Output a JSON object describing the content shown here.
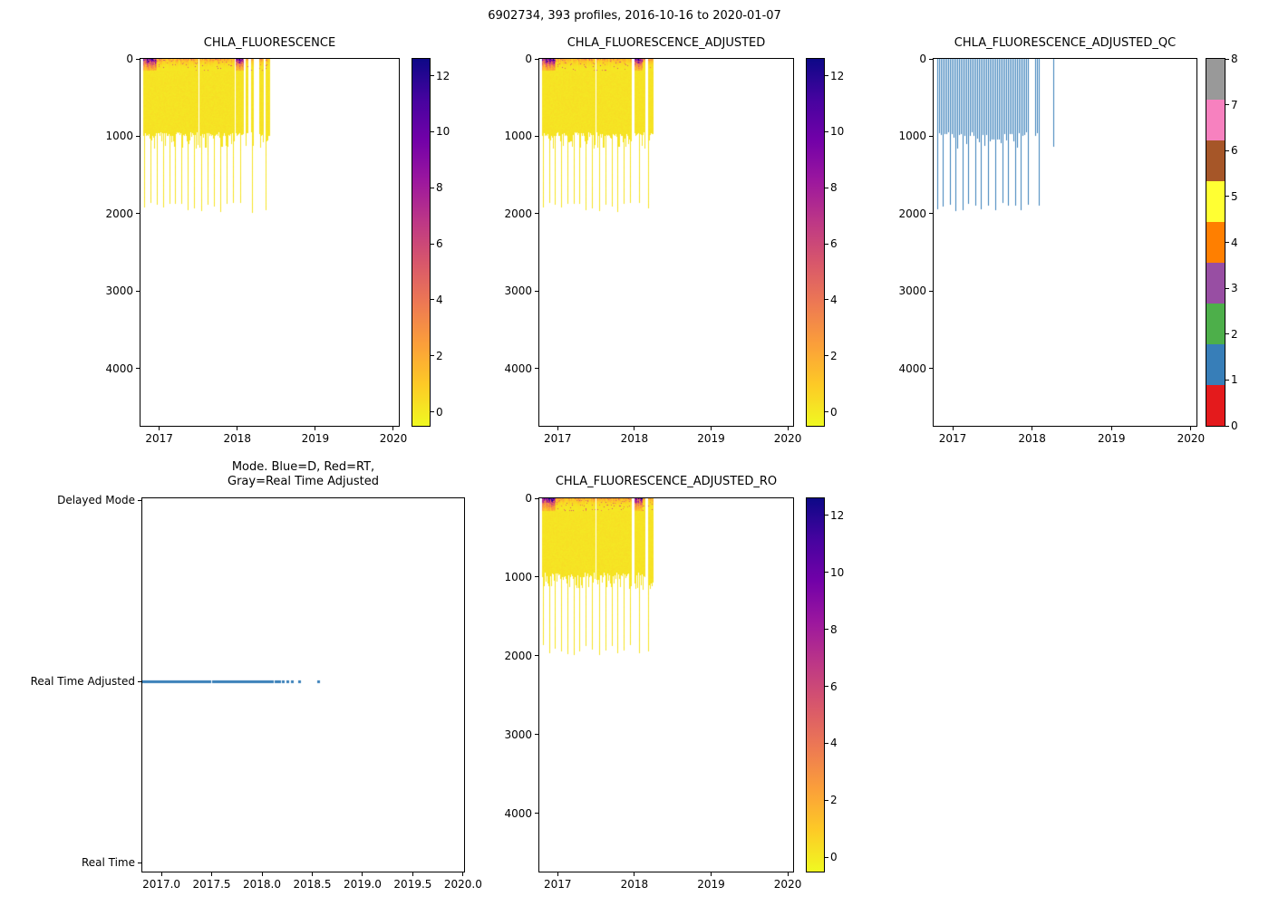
{
  "figure": {
    "title": "6902734, 393 profiles, 2016-10-16 to 2020-01-07"
  },
  "palette": {
    "plasma": [
      "#0d0887",
      "#46039f",
      "#7201a8",
      "#9c179e",
      "#bd3786",
      "#d8576b",
      "#ed7953",
      "#fb9f3a",
      "#fdca26",
      "#f0f921"
    ],
    "qc_flags": [
      "#e41a1c",
      "#377eb8",
      "#4daf4a",
      "#984ea3",
      "#ff7f00",
      "#ffff33",
      "#a65628",
      "#f781bf",
      "#999999"
    ],
    "mode_marker": "#377eb8"
  },
  "plots": {
    "p1": {
      "title": "CHLA_FLUORESCENCE",
      "yticks": [
        "0",
        "1000",
        "2000",
        "3000",
        "4000"
      ],
      "xticks": [
        "2017",
        "2018",
        "2019",
        "2020"
      ],
      "cbar_ticks": [
        "0",
        "2",
        "4",
        "6",
        "8",
        "10",
        "12"
      ]
    },
    "p2": {
      "title": "CHLA_FLUORESCENCE_ADJUSTED",
      "yticks": [
        "0",
        "1000",
        "2000",
        "3000",
        "4000"
      ],
      "xticks": [
        "2017",
        "2018",
        "2019",
        "2020"
      ],
      "cbar_ticks": [
        "0",
        "2",
        "4",
        "6",
        "8",
        "10",
        "12"
      ]
    },
    "p3": {
      "title": "CHLA_FLUORESCENCE_ADJUSTED_QC",
      "yticks": [
        "0",
        "1000",
        "2000",
        "3000",
        "4000"
      ],
      "xticks": [
        "2017",
        "2018",
        "2019",
        "2020"
      ],
      "cbar_ticks": [
        "0",
        "1",
        "2",
        "3",
        "4",
        "5",
        "6",
        "7",
        "8"
      ]
    },
    "p4": {
      "title_line1": "Mode. Blue=D, Red=RT,",
      "title_line2": "Gray=Real Time Adjusted",
      "yticks": [
        "Delayed Mode",
        "Real Time Adjusted",
        "Real Time"
      ],
      "xticks": [
        "2017.0",
        "2017.5",
        "2018.0",
        "2018.5",
        "2019.0",
        "2019.5",
        "2020.0"
      ]
    },
    "p5": {
      "title": "CHLA_FLUORESCENCE_ADJUSTED_RO",
      "yticks": [
        "0",
        "1000",
        "2000",
        "3000",
        "4000"
      ],
      "xticks": [
        "2017",
        "2018",
        "2019",
        "2020"
      ],
      "cbar_ticks": [
        "0",
        "2",
        "4",
        "6",
        "8",
        "10",
        "12"
      ]
    }
  },
  "chart_data": [
    {
      "id": "p1",
      "type": "heatmap",
      "title": "CHLA_FLUORESCENCE",
      "x_range_years": [
        2016.76,
        2020.07
      ],
      "depth_range_m": [
        0,
        4740
      ],
      "colormap": "plasma_r",
      "vmin": -0.5,
      "vmax": 12.6,
      "colorbar_ticks": [
        0,
        2,
        4,
        6,
        8,
        10,
        12
      ],
      "coverage_segments_years": [
        [
          2016.79,
          2017.49
        ],
        [
          2017.51,
          2017.96
        ],
        [
          2017.98,
          2018.07
        ],
        [
          2018.11,
          2018.14
        ],
        [
          2018.18,
          2018.21
        ],
        [
          2018.28,
          2018.33
        ],
        [
          2018.36,
          2018.41
        ]
      ],
      "profile_spacing_years": 0.008,
      "main_profile_depth_m": [
        930,
        1150
      ],
      "deep_profile_depth_m": [
        1850,
        1990
      ],
      "deep_profile_every_n": 10,
      "surface_bloom_depth_m": 150,
      "surface_values_typical": [
        0.8,
        3.5
      ],
      "surface_values_bloom": [
        6,
        13
      ],
      "bloom_periods_years": [
        [
          2016.79,
          2016.97
        ],
        [
          2017.98,
          2018.07
        ]
      ],
      "deep_values": [
        0,
        0.35
      ]
    },
    {
      "id": "p2",
      "type": "heatmap",
      "title": "CHLA_FLUORESCENCE_ADJUSTED",
      "x_range_years": [
        2016.76,
        2020.07
      ],
      "depth_range_m": [
        0,
        4740
      ],
      "colormap": "plasma_r",
      "vmin": -0.5,
      "vmax": 12.6,
      "colorbar_ticks": [
        0,
        2,
        4,
        6,
        8,
        10,
        12
      ],
      "coverage_segments_years": [
        [
          2016.79,
          2017.49
        ],
        [
          2017.51,
          2017.96
        ],
        [
          2018.0,
          2018.13
        ],
        [
          2018.18,
          2018.24
        ]
      ],
      "profile_spacing_years": 0.008,
      "main_profile_depth_m": [
        930,
        1150
      ],
      "deep_profile_depth_m": [
        1850,
        1990
      ],
      "deep_profile_every_n": 10,
      "surface_bloom_depth_m": 150,
      "surface_values_typical": [
        0.8,
        3.5
      ],
      "surface_values_bloom": [
        6,
        13
      ],
      "bloom_periods_years": [
        [
          2016.79,
          2016.97
        ],
        [
          2018.0,
          2018.1
        ]
      ],
      "deep_values": [
        0,
        0.35
      ]
    },
    {
      "id": "p3",
      "type": "heatmap",
      "title": "CHLA_FLUORESCENCE_ADJUSTED_QC",
      "x_range_years": [
        2016.76,
        2020.07
      ],
      "depth_range_m": [
        0,
        4740
      ],
      "colormap": "qc_flags",
      "qc_flag_value": 1,
      "colorbar_ticks": [
        0,
        1,
        2,
        3,
        4,
        5,
        6,
        7,
        8
      ],
      "coverage_segments_years": [
        [
          2016.79,
          2017.49
        ],
        [
          2017.51,
          2017.96
        ],
        [
          2018.03,
          2018.09
        ],
        [
          2018.25,
          2018.27
        ]
      ],
      "profile_spacing_years": 0.008,
      "main_profile_depth_m": [
        930,
        1150
      ],
      "deep_profile_depth_m": [
        1850,
        1990
      ],
      "deep_profile_every_n": 10
    },
    {
      "id": "p4",
      "type": "scatter",
      "title": "Mode. Blue=D, Red=RT, Gray=Real Time Adjusted",
      "x_range_years": [
        2016.81,
        2020.01
      ],
      "y_categories": [
        "Real Time",
        "Real Time Adjusted",
        "Delayed Mode"
      ],
      "marker_color": "#377eb8",
      "series": [
        {
          "name": "Real Time Adjusted",
          "category": "Real Time Adjusted",
          "spans_years": [
            [
              2016.81,
              2017.48
            ],
            [
              2017.505,
              2018.02
            ],
            [
              2018.04,
              2018.06
            ],
            [
              2018.08,
              2018.1
            ],
            [
              2018.13,
              2018.17
            ]
          ],
          "sparse_points_years": [
            2018.21,
            2018.25,
            2018.3,
            2018.37,
            2018.56
          ]
        }
      ]
    },
    {
      "id": "p5",
      "type": "heatmap",
      "title": "CHLA_FLUORESCENCE_ADJUSTED_RO",
      "x_range_years": [
        2016.76,
        2020.07
      ],
      "depth_range_m": [
        0,
        4740
      ],
      "colormap": "plasma_r",
      "vmin": -0.5,
      "vmax": 12.6,
      "colorbar_ticks": [
        0,
        2,
        4,
        6,
        8,
        10,
        12
      ],
      "coverage_segments_years": [
        [
          2016.79,
          2017.49
        ],
        [
          2017.51,
          2017.96
        ],
        [
          2018.0,
          2018.13
        ],
        [
          2018.18,
          2018.24
        ]
      ],
      "profile_spacing_years": 0.008,
      "main_profile_depth_m": [
        930,
        1150
      ],
      "deep_profile_depth_m": [
        1850,
        1990
      ],
      "deep_profile_every_n": 10,
      "surface_bloom_depth_m": 150,
      "surface_values_typical": [
        0.8,
        3.5
      ],
      "surface_values_bloom": [
        6,
        13
      ],
      "bloom_periods_years": [
        [
          2016.79,
          2016.97
        ],
        [
          2018.0,
          2018.1
        ]
      ],
      "deep_values": [
        0,
        0.35
      ]
    }
  ]
}
